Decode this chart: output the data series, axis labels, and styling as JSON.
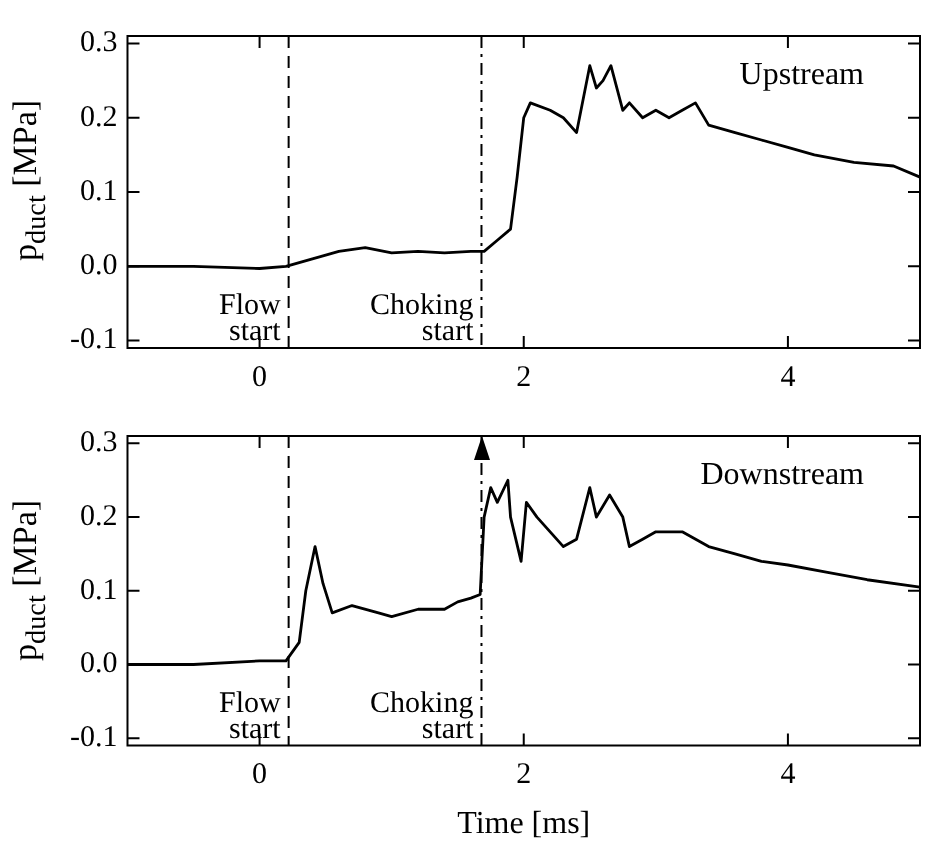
{
  "chart_data": [
    {
      "type": "line",
      "ylabel": "p$_{duct}$ [MPa]",
      "xlim": [
        -1,
        5
      ],
      "xticks": [
        0,
        2,
        4
      ],
      "ylim": [
        -0.11,
        0.31
      ],
      "yticks": [
        -0.1,
        {
          "value": 0,
          "label": "0.0"
        },
        0.1,
        0.2,
        0.3
      ],
      "grid": false,
      "legend": false,
      "marker": "none",
      "line_style": "solid",
      "annotations": [
        "Upstream"
      ],
      "ref_lines": [
        {
          "axis": "x",
          "value": 0.22,
          "label": "Flow start",
          "line_style": "dashed"
        },
        {
          "axis": "x",
          "value": 1.68,
          "label": "Choking start",
          "line_style": "dashdot"
        }
      ],
      "series": [
        {
          "color": "#000000",
          "x": [
            -1,
            -0.5,
            0,
            0.2,
            0.4,
            0.6,
            0.8,
            1.0,
            1.2,
            1.4,
            1.6,
            1.7,
            1.8,
            1.9,
            1.95,
            2.0,
            2.05,
            2.2,
            2.3,
            2.4,
            2.5,
            2.55,
            2.6,
            2.66,
            2.75,
            2.8,
            2.9,
            3.0,
            3.1,
            3.2,
            3.3,
            3.4,
            3.6,
            3.8,
            4.0,
            4.2,
            4.5,
            4.8,
            5.0
          ],
          "values": [
            0.0,
            0.0,
            -0.003,
            0.0,
            0.01,
            0.02,
            0.025,
            0.018,
            0.02,
            0.018,
            0.02,
            0.02,
            0.035,
            0.05,
            0.12,
            0.2,
            0.22,
            0.21,
            0.2,
            0.18,
            0.27,
            0.24,
            0.25,
            0.27,
            0.21,
            0.22,
            0.2,
            0.21,
            0.2,
            0.21,
            0.22,
            0.19,
            0.18,
            0.17,
            0.16,
            0.15,
            0.14,
            0.135,
            0.12
          ]
        }
      ]
    },
    {
      "type": "line",
      "xlabel": "Time [ms]",
      "ylabel": "p$_{duct}$ [MPa]",
      "xlim": [
        -1,
        5
      ],
      "xticks": [
        0,
        2,
        4
      ],
      "ylim": [
        -0.11,
        0.31
      ],
      "yticks": [
        -0.1,
        {
          "value": 0,
          "label": "0.0"
        },
        0.1,
        0.2,
        0.3
      ],
      "grid": false,
      "legend": false,
      "marker": "none",
      "line_style": "solid",
      "annotations": [
        "Downstream"
      ],
      "ref_lines": [
        {
          "axis": "x",
          "value": 0.22,
          "label": "Flow start",
          "line_style": "dashed"
        },
        {
          "axis": "x",
          "value": 1.68,
          "label": "Choking start",
          "line_style": "dashdot"
        }
      ],
      "series": [
        {
          "color": "#000000",
          "x": [
            -1,
            -0.5,
            0,
            0.2,
            0.3,
            0.35,
            0.42,
            0.48,
            0.55,
            0.7,
            0.9,
            1.0,
            1.2,
            1.4,
            1.5,
            1.6,
            1.67,
            1.7,
            1.75,
            1.8,
            1.88,
            1.9,
            1.98,
            2.02,
            2.1,
            2.2,
            2.3,
            2.4,
            2.5,
            2.55,
            2.65,
            2.75,
            2.8,
            2.9,
            3.0,
            3.2,
            3.4,
            3.6,
            3.8,
            4.0,
            4.3,
            4.6,
            5.0
          ],
          "values": [
            0.0,
            0.0,
            0.005,
            0.005,
            0.03,
            0.1,
            0.16,
            0.11,
            0.07,
            0.08,
            0.07,
            0.065,
            0.075,
            0.075,
            0.085,
            0.09,
            0.095,
            0.2,
            0.24,
            0.22,
            0.25,
            0.2,
            0.14,
            0.22,
            0.2,
            0.18,
            0.16,
            0.17,
            0.24,
            0.2,
            0.23,
            0.2,
            0.16,
            0.17,
            0.18,
            0.18,
            0.16,
            0.15,
            0.14,
            0.135,
            0.125,
            0.115,
            0.105
          ]
        }
      ]
    }
  ]
}
